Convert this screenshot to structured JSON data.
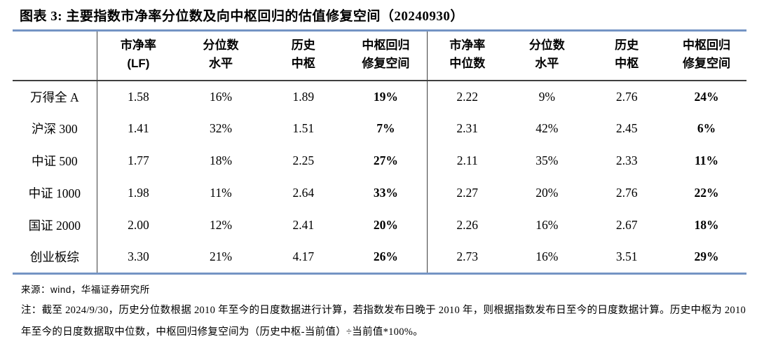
{
  "title": "图表 3:  主要指数市净率分位数及向中枢回归的估值修复空间（20240930）",
  "colors": {
    "table_border_blue": "#7494c4",
    "header_rule_dark": "#3f3f3f",
    "text": "#000000",
    "background": "#ffffff"
  },
  "table": {
    "headers_left": [
      {
        "l1": "市净率",
        "l2": "(LF)"
      },
      {
        "l1": "分位数",
        "l2": "水平"
      },
      {
        "l1": "历史",
        "l2": "中枢"
      },
      {
        "l1": "中枢回归",
        "l2": "修复空间"
      }
    ],
    "headers_right": [
      {
        "l1": "市净率",
        "l2": "中位数"
      },
      {
        "l1": "分位数",
        "l2": "水平"
      },
      {
        "l1": "历史",
        "l2": "中枢"
      },
      {
        "l1": "中枢回归",
        "l2": "修复空间"
      }
    ],
    "rows": [
      {
        "label": "万得全 A",
        "left": [
          "1.58",
          "16%",
          "1.89",
          "19%"
        ],
        "right": [
          "2.22",
          "9%",
          "2.76",
          "24%"
        ]
      },
      {
        "label": "沪深 300",
        "left": [
          "1.41",
          "32%",
          "1.51",
          "7%"
        ],
        "right": [
          "2.31",
          "42%",
          "2.45",
          "6%"
        ]
      },
      {
        "label": "中证 500",
        "left": [
          "1.77",
          "18%",
          "2.25",
          "27%"
        ],
        "right": [
          "2.11",
          "35%",
          "2.33",
          "11%"
        ]
      },
      {
        "label": "中证 1000",
        "left": [
          "1.98",
          "11%",
          "2.64",
          "33%"
        ],
        "right": [
          "2.27",
          "20%",
          "2.76",
          "22%"
        ]
      },
      {
        "label": "国证 2000",
        "left": [
          "2.00",
          "12%",
          "2.41",
          "20%"
        ],
        "right": [
          "2.26",
          "16%",
          "2.67",
          "18%"
        ]
      },
      {
        "label": "创业板综",
        "left": [
          "3.30",
          "21%",
          "4.17",
          "26%"
        ],
        "right": [
          "2.73",
          "16%",
          "3.51",
          "29%"
        ]
      }
    ]
  },
  "source": {
    "label": "来源：",
    "vendor": "wind",
    "suffix": "，华福证券研究所"
  },
  "note": "注：截至 2024/9/30，历史分位数根据 2010 年至今的日度数据进行计算，若指数发布日晚于 2010 年，则根据指数发布日至今的日度数据计算。历史中枢为 2010 年至今的日度数据取中位数，中枢回归修复空间为（历史中枢-当前值）÷当前值*100%。",
  "chart_data": {
    "type": "table",
    "title": "主要指数市净率分位数及向中枢回归的估值修复空间（20240930）",
    "row_labels": [
      "万得全 A",
      "沪深 300",
      "中证 500",
      "中证 1000",
      "国证 2000",
      "创业板综"
    ],
    "columns": [
      "市净率(LF)",
      "分位数水平",
      "历史中枢",
      "中枢回归修复空间",
      "市净率中位数",
      "分位数水平",
      "历史中枢",
      "中枢回归修复空间"
    ],
    "values": [
      [
        "1.58",
        "16%",
        "1.89",
        "19%",
        "2.22",
        "9%",
        "2.76",
        "24%"
      ],
      [
        "1.41",
        "32%",
        "1.51",
        "7%",
        "2.31",
        "42%",
        "2.45",
        "6%"
      ],
      [
        "1.77",
        "18%",
        "2.25",
        "27%",
        "2.11",
        "35%",
        "2.33",
        "11%"
      ],
      [
        "1.98",
        "11%",
        "2.64",
        "33%",
        "2.27",
        "20%",
        "2.76",
        "22%"
      ],
      [
        "2.00",
        "12%",
        "2.41",
        "20%",
        "2.26",
        "16%",
        "2.67",
        "18%"
      ],
      [
        "3.30",
        "21%",
        "4.17",
        "26%",
        "2.73",
        "16%",
        "3.51",
        "29%"
      ]
    ]
  }
}
